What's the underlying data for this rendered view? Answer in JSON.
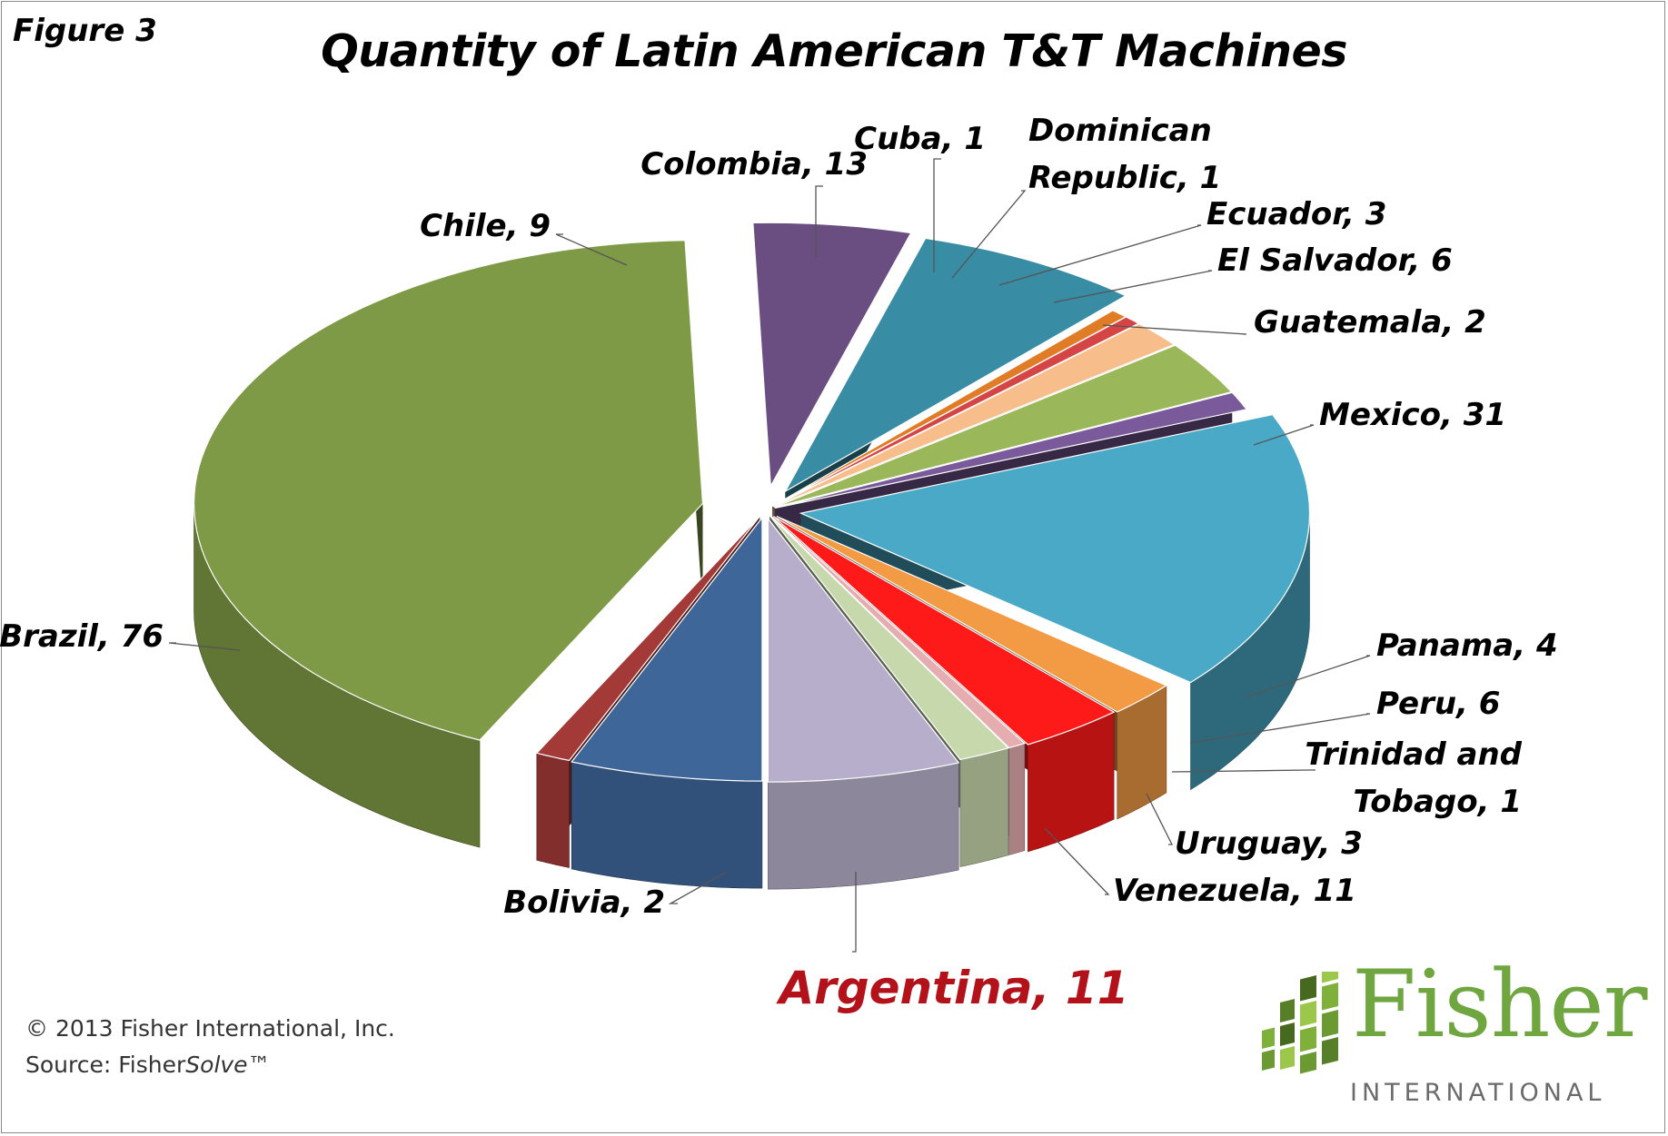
{
  "figure_label": "Figure 3",
  "copyright": "© 2013 Fisher International, Inc.",
  "source_prefix": "Source: Fisher",
  "source_italic": "Solve",
  "source_suffix": "™",
  "logo": {
    "word": "Fisher",
    "sub": "INTERNATIONAL",
    "color": "#6fa640"
  },
  "chart_data": {
    "type": "pie",
    "style": "3d-exploded",
    "title": "Quantity  of  Latin American T&T Machines",
    "highlight": "Argentina",
    "slices": [
      {
        "name": "Argentina",
        "label": "Argentina, 11",
        "value": 11,
        "color": "#3e6699"
      },
      {
        "name": "Bolivia",
        "label": "Bolivia, 2",
        "value": 2,
        "color": "#a33a38"
      },
      {
        "name": "Brazil",
        "label": "Brazil, 76",
        "value": 76,
        "color": "#7f9a46"
      },
      {
        "name": "Chile",
        "label": "Chile, 9",
        "value": 9,
        "color": "#6a4e82"
      },
      {
        "name": "Colombia",
        "label": "Colombia, 13",
        "value": 13,
        "color": "#388ca3"
      },
      {
        "name": "Cuba",
        "label": "Cuba, 1",
        "value": 1,
        "color": "#e07c26"
      },
      {
        "name": "Dominican Republic",
        "label": "Dominican Republic, 1",
        "value": 1,
        "color": "#d64545"
      },
      {
        "name": "Ecuador",
        "label": "Ecuador, 3",
        "value": 3,
        "color": "#f7be8c"
      },
      {
        "name": "El Salvador",
        "label": "El Salvador, 6",
        "value": 6,
        "color": "#9ab859"
      },
      {
        "name": "Guatemala",
        "label": "Guatemala, 2",
        "value": 2,
        "color": "#7a5a9a"
      },
      {
        "name": "Mexico",
        "label": "Mexico, 31",
        "value": 31,
        "color": "#4aa9c6"
      },
      {
        "name": "Panama",
        "label": "Panama, 4",
        "value": 4,
        "color": "#f39a45"
      },
      {
        "name": "Peru",
        "label": "Peru, 6",
        "value": 6,
        "color": "#ff1a1a"
      },
      {
        "name": "Trinidad and Tobago",
        "label": "Trinidad and Tobago, 1",
        "value": 1,
        "color": "#e6adb0"
      },
      {
        "name": "Uruguay",
        "label": "Uruguay, 3",
        "value": 3,
        "color": "#c7d8ad"
      },
      {
        "name": "Venezuela",
        "label": "Venezuela, 11",
        "value": 11,
        "color": "#b6aeca"
      }
    ]
  }
}
